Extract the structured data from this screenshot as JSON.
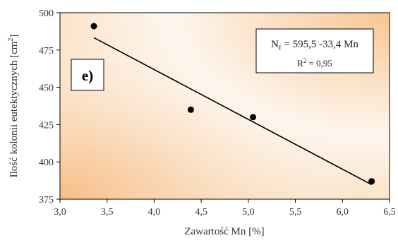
{
  "chart_data": {
    "type": "scatter",
    "title": "",
    "panel_label": "e)",
    "xlabel": "Zawartość Mn [%]",
    "ylabel": "Ilość kolonii eutektycznych [cm",
    "ylabel_sup": "2",
    "ylabel_end": "]",
    "xlim": [
      3.0,
      6.5
    ],
    "ylim": [
      375,
      500
    ],
    "x_ticks": [
      "3,0",
      "3,5",
      "4,0",
      "4,5",
      "5,0",
      "5,5",
      "6,0",
      "6,5"
    ],
    "y_ticks": [
      "375",
      "400",
      "425",
      "450",
      "475",
      "500"
    ],
    "grid": "none",
    "background": "orange radial gradient",
    "series": [
      {
        "points": [
          {
            "x": 3.36,
            "y": 491
          },
          {
            "x": 4.39,
            "y": 435
          },
          {
            "x": 5.05,
            "y": 430
          },
          {
            "x": 6.31,
            "y": 387
          }
        ],
        "color": "#000000"
      }
    ],
    "trendline": {
      "slope": -33.4,
      "intercept": 595.5,
      "x_start": 3.36,
      "x_end": 6.31,
      "color": "#000000"
    },
    "equation": {
      "lhs_main": "N",
      "lhs_sub": "f",
      "rhs": " = 595,5 -33,4 Mn",
      "r2_main": "R",
      "r2_sup": "2",
      "r2_rest": " = 0,95"
    }
  }
}
